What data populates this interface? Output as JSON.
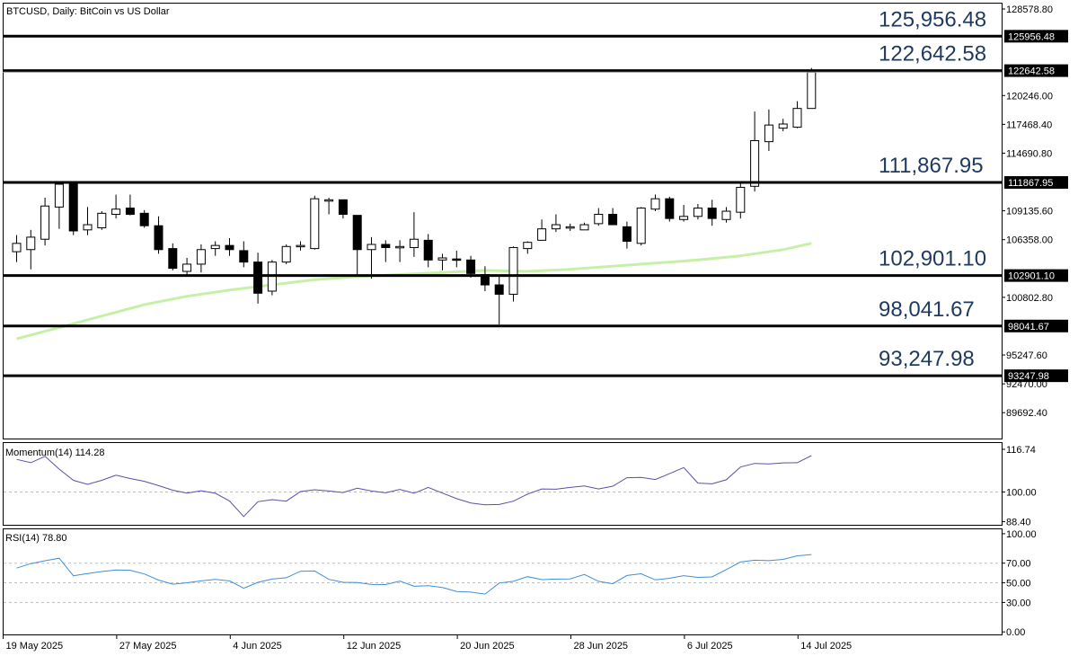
{
  "chart_data": [
    {
      "type": "candlestick",
      "title": "BTCUSD, Daily:  BitCoin vs US Dollar",
      "y_ticks": [
        "128578.80",
        "120246.00",
        "117468.40",
        "114690.80",
        "109135.60",
        "106358.00",
        "100802.80",
        "95247.60",
        "92470.00",
        "89692.40"
      ],
      "ylim": [
        87200,
        129100
      ],
      "x_ticks": [
        {
          "label": "19 May 2025",
          "index": 0
        },
        {
          "label": "27 May 2025",
          "index": 8
        },
        {
          "label": "4 Jun 2025",
          "index": 16
        },
        {
          "label": "12 Jun 2025",
          "index": 24
        },
        {
          "label": "20 Jun 2025",
          "index": 32
        },
        {
          "label": "28 Jun 2025",
          "index": 40
        },
        {
          "label": "6 Jul 2025",
          "index": 48
        },
        {
          "label": "14 Jul 2025",
          "index": 56
        }
      ],
      "levels": [
        {
          "value": 125956.48,
          "label": "125,956.48",
          "tag": "125956.48"
        },
        {
          "value": 122642.58,
          "label": "122,642.58",
          "tag": "122642.58"
        },
        {
          "value": 111867.95,
          "label": "111,867.95",
          "tag": "111867.95"
        },
        {
          "value": 102901.1,
          "label": "102,901.10",
          "tag": "102901.10"
        },
        {
          "value": 98041.67,
          "label": "98,041.67",
          "tag": "98041.67"
        },
        {
          "value": 93247.98,
          "label": "93,247.98",
          "tag": "93247.98"
        }
      ],
      "candles": [
        {
          "o": 105200,
          "h": 106800,
          "l": 104200,
          "c": 106000
        },
        {
          "o": 105400,
          "h": 107300,
          "l": 103500,
          "c": 106600
        },
        {
          "o": 106400,
          "h": 110400,
          "l": 105800,
          "c": 109600
        },
        {
          "o": 109500,
          "h": 111900,
          "l": 107400,
          "c": 111700
        },
        {
          "o": 111800,
          "h": 111900,
          "l": 106800,
          "c": 107200
        },
        {
          "o": 107300,
          "h": 109500,
          "l": 106800,
          "c": 107800
        },
        {
          "o": 107500,
          "h": 109100,
          "l": 107300,
          "c": 108900
        },
        {
          "o": 108800,
          "h": 110700,
          "l": 108400,
          "c": 109300
        },
        {
          "o": 109400,
          "h": 110700,
          "l": 108700,
          "c": 108800
        },
        {
          "o": 108900,
          "h": 109200,
          "l": 107500,
          "c": 107700
        },
        {
          "o": 107700,
          "h": 108600,
          "l": 105000,
          "c": 105400
        },
        {
          "o": 105500,
          "h": 106000,
          "l": 103400,
          "c": 103600
        },
        {
          "o": 103300,
          "h": 104600,
          "l": 103000,
          "c": 104000
        },
        {
          "o": 104000,
          "h": 105900,
          "l": 103200,
          "c": 105400
        },
        {
          "o": 105500,
          "h": 106200,
          "l": 104800,
          "c": 105800
        },
        {
          "o": 105800,
          "h": 106500,
          "l": 104800,
          "c": 105400
        },
        {
          "o": 105300,
          "h": 106200,
          "l": 103700,
          "c": 104200
        },
        {
          "o": 104200,
          "h": 105100,
          "l": 100200,
          "c": 101200
        },
        {
          "o": 101400,
          "h": 104400,
          "l": 101000,
          "c": 104200
        },
        {
          "o": 104200,
          "h": 105900,
          "l": 104000,
          "c": 105700
        },
        {
          "o": 105700,
          "h": 106200,
          "l": 105300,
          "c": 105800
        },
        {
          "o": 105500,
          "h": 110600,
          "l": 105400,
          "c": 110300
        },
        {
          "o": 110200,
          "h": 110400,
          "l": 108800,
          "c": 110200
        },
        {
          "o": 110200,
          "h": 110200,
          "l": 108400,
          "c": 108800
        },
        {
          "o": 108700,
          "h": 108700,
          "l": 102800,
          "c": 105400
        },
        {
          "o": 105400,
          "h": 106600,
          "l": 102600,
          "c": 105900
        },
        {
          "o": 105900,
          "h": 106300,
          "l": 104200,
          "c": 105600
        },
        {
          "o": 105600,
          "h": 106300,
          "l": 104200,
          "c": 105700
        },
        {
          "o": 105600,
          "h": 109000,
          "l": 104700,
          "c": 106400
        },
        {
          "o": 106300,
          "h": 106900,
          "l": 103700,
          "c": 104400
        },
        {
          "o": 104400,
          "h": 105000,
          "l": 103400,
          "c": 104600
        },
        {
          "o": 104500,
          "h": 105300,
          "l": 103700,
          "c": 104400
        },
        {
          "o": 104400,
          "h": 104800,
          "l": 102700,
          "c": 103100
        },
        {
          "o": 103000,
          "h": 103800,
          "l": 101400,
          "c": 102000
        },
        {
          "o": 102000,
          "h": 103000,
          "l": 98200,
          "c": 101100
        },
        {
          "o": 101100,
          "h": 105700,
          "l": 100400,
          "c": 105600
        },
        {
          "o": 105500,
          "h": 106200,
          "l": 105000,
          "c": 106100
        },
        {
          "o": 106300,
          "h": 108300,
          "l": 106300,
          "c": 107400
        },
        {
          "o": 107400,
          "h": 108800,
          "l": 107100,
          "c": 107800
        },
        {
          "o": 107600,
          "h": 107900,
          "l": 107200,
          "c": 107600
        },
        {
          "o": 107300,
          "h": 108000,
          "l": 107300,
          "c": 107800
        },
        {
          "o": 107900,
          "h": 109400,
          "l": 107700,
          "c": 108800
        },
        {
          "o": 108800,
          "h": 109400,
          "l": 108200,
          "c": 107800
        },
        {
          "o": 107600,
          "h": 108100,
          "l": 105500,
          "c": 106200
        },
        {
          "o": 106000,
          "h": 109500,
          "l": 105800,
          "c": 109400
        },
        {
          "o": 109300,
          "h": 110700,
          "l": 109100,
          "c": 110300
        },
        {
          "o": 110300,
          "h": 110500,
          "l": 108100,
          "c": 108400
        },
        {
          "o": 108300,
          "h": 109700,
          "l": 108100,
          "c": 108600
        },
        {
          "o": 108600,
          "h": 109800,
          "l": 108300,
          "c": 109400
        },
        {
          "o": 109400,
          "h": 110200,
          "l": 107700,
          "c": 108400
        },
        {
          "o": 108300,
          "h": 109500,
          "l": 108000,
          "c": 109100
        },
        {
          "o": 109000,
          "h": 112000,
          "l": 108400,
          "c": 111400
        },
        {
          "o": 111500,
          "h": 118700,
          "l": 111000,
          "c": 115900
        },
        {
          "o": 115800,
          "h": 118900,
          "l": 114900,
          "c": 117400
        },
        {
          "o": 117100,
          "h": 118000,
          "l": 116800,
          "c": 117500
        },
        {
          "o": 117200,
          "h": 119700,
          "l": 117100,
          "c": 119000
        },
        {
          "o": 119000,
          "h": 122900,
          "l": 119000,
          "c": 122500
        }
      ],
      "ma": [
        {
          "i": 0,
          "v": 96800
        },
        {
          "i": 3,
          "v": 97900
        },
        {
          "i": 6,
          "v": 99000
        },
        {
          "i": 9,
          "v": 100100
        },
        {
          "i": 12,
          "v": 100900
        },
        {
          "i": 15,
          "v": 101500
        },
        {
          "i": 18,
          "v": 102000
        },
        {
          "i": 21,
          "v": 102500
        },
        {
          "i": 24,
          "v": 102800
        },
        {
          "i": 27,
          "v": 103000
        },
        {
          "i": 30,
          "v": 103200
        },
        {
          "i": 33,
          "v": 103400
        },
        {
          "i": 36,
          "v": 103300
        },
        {
          "i": 39,
          "v": 103500
        },
        {
          "i": 42,
          "v": 103800
        },
        {
          "i": 45,
          "v": 104100
        },
        {
          "i": 48,
          "v": 104400
        },
        {
          "i": 51,
          "v": 104800
        },
        {
          "i": 54,
          "v": 105400
        },
        {
          "i": 56,
          "v": 106000
        }
      ]
    },
    {
      "type": "line",
      "title": "Momentum(14) 114.28",
      "y_ticks": [
        "116.74",
        "100.00",
        "88.40"
      ],
      "ylim": [
        86.8,
        119.2
      ],
      "ref": 100,
      "values": [
        112.8,
        111.5,
        114.0,
        109.0,
        104.6,
        103.0,
        104.6,
        106.6,
        105.3,
        104.2,
        102.5,
        100.7,
        99.6,
        100.5,
        99.5,
        96.5,
        90.4,
        96.2,
        97.0,
        96.4,
        100.2,
        100.9,
        100.4,
        99.8,
        101.5,
        100.4,
        99.7,
        101.0,
        99.5,
        101.8,
        99.6,
        97.4,
        95.7,
        95.0,
        95.1,
        96.4,
        99.2,
        101.2,
        101.1,
        101.8,
        102.4,
        101.2,
        102.3,
        105.6,
        105.7,
        104.9,
        107.2,
        109.6,
        103.5,
        103.2,
        104.8,
        109.8,
        111.2,
        111.0,
        111.4,
        111.5,
        114.28
      ]
    },
    {
      "type": "line",
      "title": "RSI(14) 78.80",
      "y_ticks": [
        "100.00",
        "70.00",
        "50.00",
        "30.00",
        "0.00"
      ],
      "ylim": [
        -3.5,
        104.5
      ],
      "ref_levels": [
        70,
        50,
        30
      ],
      "values": [
        65.0,
        69.5,
        72.5,
        75.0,
        57.2,
        59.5,
        61.5,
        63.0,
        62.8,
        59.0,
        52.8,
        48.6,
        50.0,
        52.0,
        53.5,
        52.0,
        44.5,
        50.5,
        53.8,
        55.2,
        61.8,
        62.0,
        53.5,
        50.5,
        50.2,
        48.3,
        48.2,
        51.8,
        46.5,
        47.0,
        45.2,
        41.2,
        40.5,
        38.5,
        49.8,
        51.5,
        56.3,
        53.2,
        53.8,
        54.0,
        58.5,
        51.5,
        49.0,
        57.5,
        59.2,
        53.0,
        54.6,
        57.3,
        55.5,
        56.0,
        63.5,
        71.2,
        73.0,
        72.6,
        73.8,
        77.5,
        78.8
      ]
    }
  ]
}
